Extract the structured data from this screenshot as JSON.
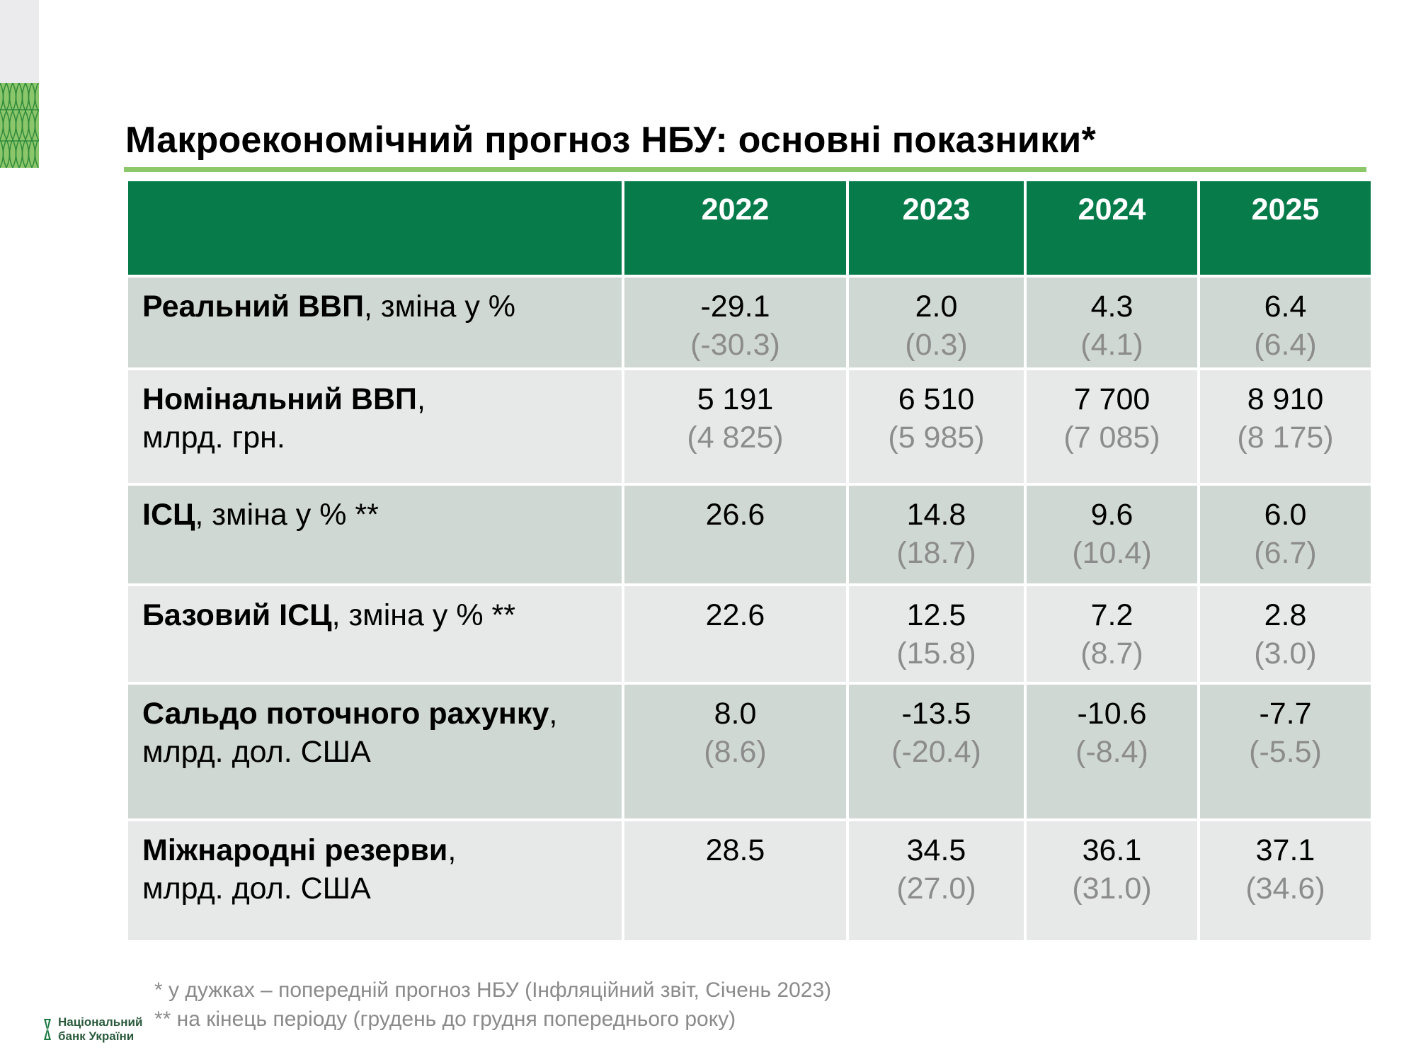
{
  "title": "Макроекономічний прогноз НБУ: основні показники*",
  "colors": {
    "header_green": "#087b4a",
    "accent_line": "#8cc86a",
    "row_dark": "#cfd8d2",
    "row_light": "#e6e9e7",
    "previous_forecast_text": "#8c8c8c"
  },
  "table": {
    "years": [
      "2022",
      "2023",
      "2024",
      "2025"
    ],
    "rows": [
      {
        "label_bold": "Реальний ВВП",
        "label_rest": ", зміна у %",
        "label_line2": "",
        "values": [
          {
            "cur": "-29.1",
            "prev": "(-30.3)"
          },
          {
            "cur": "2.0",
            "prev": "(0.3)"
          },
          {
            "cur": "4.3",
            "prev": "(4.1)"
          },
          {
            "cur": "6.4",
            "prev": "(6.4)"
          }
        ]
      },
      {
        "label_bold": "Номінальний ВВП",
        "label_rest": ",",
        "label_line2": "млрд. грн.",
        "values": [
          {
            "cur": "5 191",
            "prev": "(4 825)"
          },
          {
            "cur": "6 510",
            "prev": "(5 985)"
          },
          {
            "cur": "7 700",
            "prev": "(7 085)"
          },
          {
            "cur": "8 910",
            "prev": "(8 175)"
          }
        ]
      },
      {
        "label_bold": "ІСЦ",
        "label_rest": ", зміна у % **",
        "label_line2": "",
        "values": [
          {
            "cur": "26.6",
            "prev": ""
          },
          {
            "cur": "14.8",
            "prev": "(18.7)"
          },
          {
            "cur": "9.6",
            "prev": "(10.4)"
          },
          {
            "cur": "6.0",
            "prev": "(6.7)"
          }
        ]
      },
      {
        "label_bold": "Базовий ІСЦ",
        "label_rest": ", зміна у % **",
        "label_line2": "",
        "values": [
          {
            "cur": "22.6",
            "prev": ""
          },
          {
            "cur": "12.5",
            "prev": "(15.8)"
          },
          {
            "cur": "7.2",
            "prev": "(8.7)"
          },
          {
            "cur": "2.8",
            "prev": "(3.0)"
          }
        ]
      },
      {
        "label_bold": "Сальдо поточного рахунку",
        "label_rest": ",",
        "label_line2": "млрд. дол. США",
        "values": [
          {
            "cur": "8.0",
            "prev": "(8.6)"
          },
          {
            "cur": "-13.5",
            "prev": "(-20.4)"
          },
          {
            "cur": "-10.6",
            "prev": "(-8.4)"
          },
          {
            "cur": "-7.7",
            "prev": "(-5.5)"
          }
        ]
      },
      {
        "label_bold": "Міжнародні резерви",
        "label_rest": ",",
        "label_line2": "млрд. дол. США",
        "values": [
          {
            "cur": "28.5",
            "prev": ""
          },
          {
            "cur": "34.5",
            "prev": "(27.0)"
          },
          {
            "cur": "36.1",
            "prev": "(31.0)"
          },
          {
            "cur": "37.1",
            "prev": "(34.6)"
          }
        ]
      }
    ]
  },
  "footnotes": [
    "* у дужках – попередній прогноз НБУ (Інфляційний звіт, Січень 2023)",
    "** на кінець періоду (грудень до грудня попереднього року)"
  ],
  "logo": {
    "line1": "Національний",
    "line2": "банк України"
  }
}
